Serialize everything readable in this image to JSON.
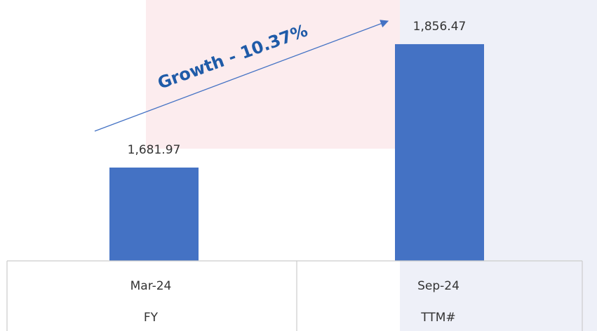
{
  "chart_data": {
    "type": "bar",
    "annotation": "Growth - 10.37%",
    "categories": [
      "Mar-24",
      "Sep-24"
    ],
    "category_periods": [
      "FY",
      "TTM#"
    ],
    "values": [
      1681.97,
      1856.47
    ],
    "value_labels": [
      "1,681.97",
      "1,856.47"
    ],
    "color": "#4472c4",
    "ylim": [
      1550,
      1860
    ]
  }
}
